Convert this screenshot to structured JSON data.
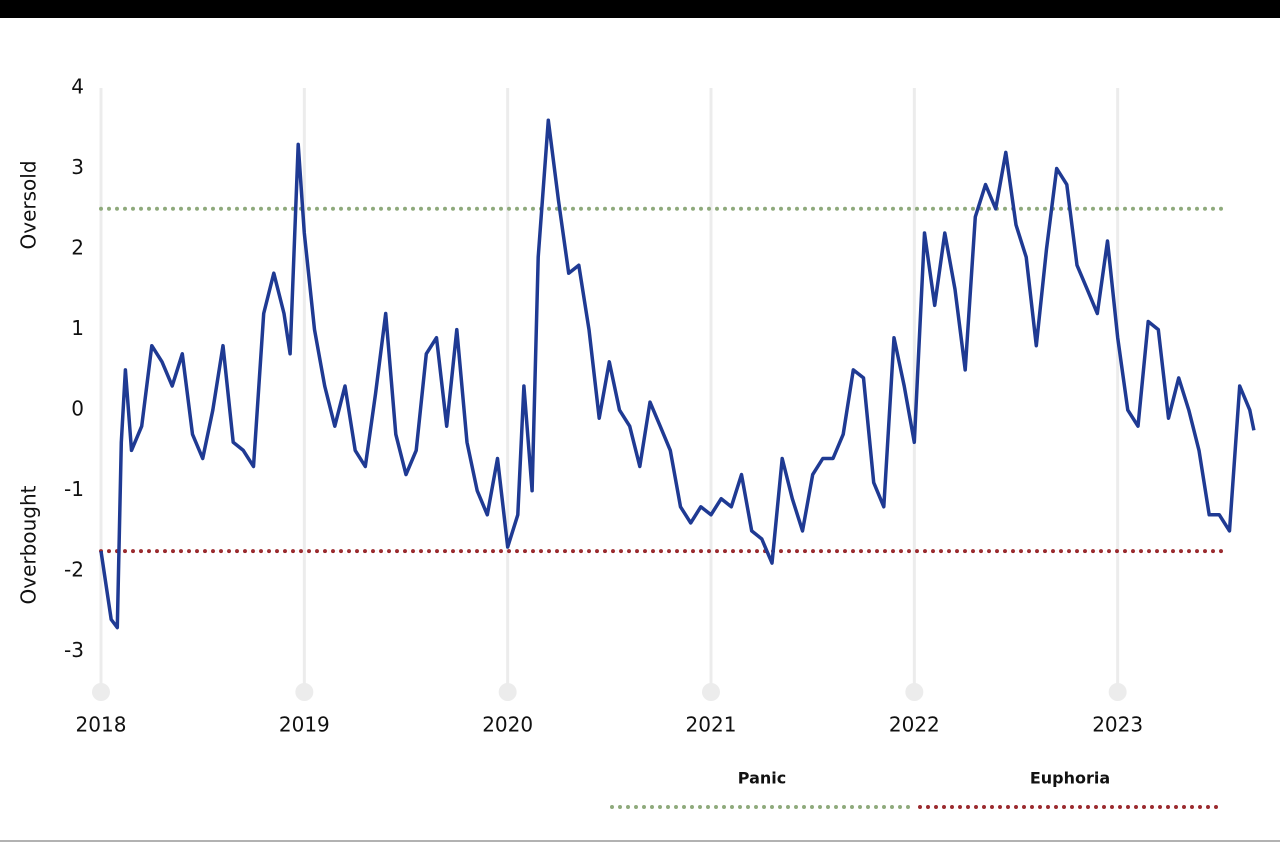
{
  "chart_data": {
    "type": "line",
    "y_label_upper": "Oversold",
    "y_label_lower": "Overbought",
    "color": "#1f3a93",
    "x": [
      2018.0,
      2018.05,
      2018.08,
      2018.1,
      2018.12,
      2018.15,
      2018.2,
      2018.25,
      2018.3,
      2018.35,
      2018.4,
      2018.45,
      2018.5,
      2018.55,
      2018.6,
      2018.65,
      2018.7,
      2018.75,
      2018.8,
      2018.85,
      2018.9,
      2018.93,
      2018.97,
      2019.0,
      2019.05,
      2019.1,
      2019.15,
      2019.2,
      2019.25,
      2019.3,
      2019.35,
      2019.4,
      2019.45,
      2019.5,
      2019.55,
      2019.6,
      2019.65,
      2019.7,
      2019.75,
      2019.8,
      2019.85,
      2019.9,
      2019.95,
      2020.0,
      2020.05,
      2020.08,
      2020.12,
      2020.15,
      2020.2,
      2020.25,
      2020.3,
      2020.35,
      2020.4,
      2020.45,
      2020.5,
      2020.55,
      2020.6,
      2020.65,
      2020.7,
      2020.75,
      2020.8,
      2020.85,
      2020.9,
      2020.95,
      2021.0,
      2021.05,
      2021.1,
      2021.15,
      2021.2,
      2021.25,
      2021.3,
      2021.35,
      2021.4,
      2021.45,
      2021.5,
      2021.55,
      2021.6,
      2021.65,
      2021.7,
      2021.75,
      2021.8,
      2021.85,
      2021.9,
      2021.95,
      2022.0,
      2022.05,
      2022.1,
      2022.15,
      2022.2,
      2022.25,
      2022.3,
      2022.35,
      2022.4,
      2022.45,
      2022.5,
      2022.55,
      2022.6,
      2022.65,
      2022.7,
      2022.75,
      2022.8,
      2022.85,
      2022.9,
      2022.95,
      2023.0,
      2023.05,
      2023.1,
      2023.15,
      2023.2,
      2023.25,
      2023.3,
      2023.35,
      2023.4,
      2023.45,
      2023.5,
      2023.55,
      2023.6,
      2023.65,
      2023.67
    ],
    "values": [
      -1.75,
      -2.6,
      -2.7,
      -0.4,
      0.5,
      -0.5,
      -0.2,
      0.8,
      0.6,
      0.3,
      0.7,
      -0.3,
      -0.6,
      0.0,
      0.8,
      -0.4,
      -0.5,
      -0.7,
      1.2,
      1.7,
      1.2,
      0.7,
      3.3,
      2.2,
      1.0,
      0.3,
      -0.2,
      0.3,
      -0.5,
      -0.7,
      0.2,
      1.2,
      -0.3,
      -0.8,
      -0.5,
      0.7,
      0.9,
      -0.2,
      1.0,
      -0.4,
      -1.0,
      -1.3,
      -0.6,
      -1.7,
      -1.3,
      0.3,
      -1.0,
      1.9,
      3.6,
      2.6,
      1.7,
      1.8,
      1.0,
      -0.1,
      0.6,
      0.0,
      -0.2,
      -0.7,
      0.1,
      -0.2,
      -0.5,
      -1.2,
      -1.4,
      -1.2,
      -1.3,
      -1.1,
      -1.2,
      -0.8,
      -1.5,
      -1.6,
      -1.9,
      -0.6,
      -1.1,
      -1.5,
      -0.8,
      -0.6,
      -0.6,
      -0.3,
      0.5,
      0.4,
      -0.9,
      -1.2,
      0.9,
      0.3,
      -0.4,
      2.2,
      1.3,
      2.2,
      1.5,
      0.5,
      2.4,
      2.8,
      2.5,
      3.2,
      2.3,
      1.9,
      0.8,
      2.0,
      3.0,
      2.8,
      1.8,
      1.5,
      1.2,
      2.1,
      0.9,
      0.0,
      -0.2,
      1.1,
      1.0,
      -0.1,
      0.4,
      0.0,
      -0.5,
      -1.3,
      -1.3,
      -1.5,
      0.3,
      0.0,
      -0.25
    ],
    "thresholds": [
      {
        "name": "Panic",
        "value": 2.5,
        "color": "#8faa7c"
      },
      {
        "name": "Euphoria",
        "value": -1.75,
        "color": "#9b2b2f"
      }
    ],
    "xlim": [
      2018,
      2023.7
    ],
    "xticks": [
      2018,
      2019,
      2020,
      2021,
      2022,
      2023
    ],
    "ylim": [
      -3.5,
      4
    ],
    "yticks": [
      -3,
      -2,
      -1,
      0,
      1,
      2,
      3,
      4
    ],
    "grid": true
  }
}
